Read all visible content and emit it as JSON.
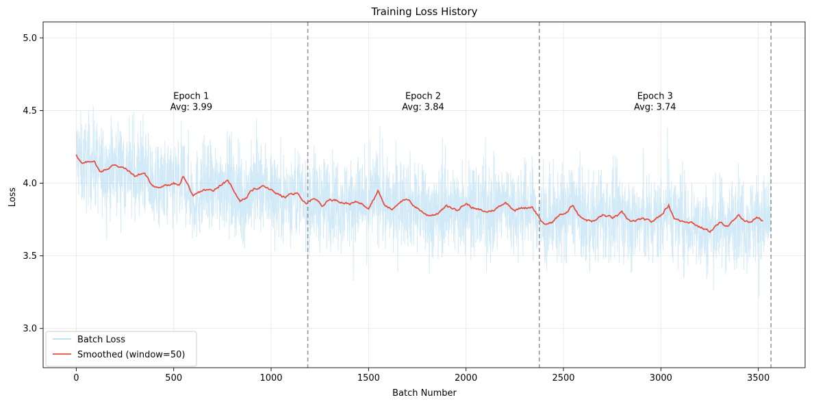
{
  "chart_data": {
    "type": "line",
    "title": "Training Loss History",
    "xlabel": "Batch Number",
    "ylabel": "Loss",
    "xlim": [
      -170,
      3740
    ],
    "ylim": [
      2.73,
      5.11
    ],
    "xticks": [
      0,
      500,
      1000,
      1500,
      2000,
      2500,
      3000,
      3500
    ],
    "yticks": [
      3.0,
      3.5,
      4.0,
      4.5,
      5.0
    ],
    "xtick_labels": [
      "0",
      "500",
      "1000",
      "1500",
      "2000",
      "2500",
      "3000",
      "3500"
    ],
    "ytick_labels": [
      "3.0",
      "3.5",
      "4.0",
      "4.5",
      "5.0"
    ],
    "grid": true,
    "legend_position": "lower-left",
    "series": [
      {
        "name": "Batch Loss",
        "color": "#add8f0",
        "style": "noisy",
        "noise_amplitude": 0.28,
        "x_range": [
          0,
          3565
        ]
      },
      {
        "name": "Smoothed (window=50)",
        "color": "#e74c3c",
        "points": [
          [
            0,
            4.2
          ],
          [
            30,
            4.13
          ],
          [
            60,
            4.14
          ],
          [
            90,
            4.16
          ],
          [
            120,
            4.08
          ],
          [
            160,
            4.1
          ],
          [
            200,
            4.13
          ],
          [
            250,
            4.1
          ],
          [
            300,
            4.05
          ],
          [
            350,
            4.07
          ],
          [
            380,
            4.0
          ],
          [
            420,
            3.97
          ],
          [
            460,
            3.98
          ],
          [
            500,
            4.0
          ],
          [
            530,
            3.98
          ],
          [
            550,
            4.05
          ],
          [
            580,
            3.97
          ],
          [
            600,
            3.9
          ],
          [
            650,
            3.95
          ],
          [
            700,
            3.95
          ],
          [
            750,
            4.0
          ],
          [
            780,
            4.01
          ],
          [
            810,
            3.95
          ],
          [
            840,
            3.88
          ],
          [
            870,
            3.9
          ],
          [
            900,
            3.95
          ],
          [
            950,
            3.98
          ],
          [
            1000,
            3.95
          ],
          [
            1030,
            3.93
          ],
          [
            1070,
            3.9
          ],
          [
            1100,
            3.92
          ],
          [
            1140,
            3.93
          ],
          [
            1180,
            3.85
          ],
          [
            1220,
            3.9
          ],
          [
            1260,
            3.85
          ],
          [
            1300,
            3.89
          ],
          [
            1350,
            3.88
          ],
          [
            1400,
            3.86
          ],
          [
            1450,
            3.87
          ],
          [
            1480,
            3.85
          ],
          [
            1500,
            3.84
          ],
          [
            1550,
            3.95
          ],
          [
            1580,
            3.85
          ],
          [
            1620,
            3.82
          ],
          [
            1660,
            3.88
          ],
          [
            1700,
            3.88
          ],
          [
            1750,
            3.83
          ],
          [
            1800,
            3.78
          ],
          [
            1850,
            3.79
          ],
          [
            1900,
            3.84
          ],
          [
            1950,
            3.82
          ],
          [
            2000,
            3.86
          ],
          [
            2050,
            3.82
          ],
          [
            2100,
            3.8
          ],
          [
            2150,
            3.82
          ],
          [
            2200,
            3.87
          ],
          [
            2250,
            3.82
          ],
          [
            2300,
            3.83
          ],
          [
            2340,
            3.84
          ],
          [
            2370,
            3.78
          ],
          [
            2400,
            3.71
          ],
          [
            2440,
            3.73
          ],
          [
            2480,
            3.78
          ],
          [
            2520,
            3.8
          ],
          [
            2550,
            3.85
          ],
          [
            2580,
            3.78
          ],
          [
            2620,
            3.75
          ],
          [
            2660,
            3.74
          ],
          [
            2700,
            3.78
          ],
          [
            2750,
            3.76
          ],
          [
            2800,
            3.79
          ],
          [
            2850,
            3.73
          ],
          [
            2900,
            3.75
          ],
          [
            2950,
            3.73
          ],
          [
            3000,
            3.78
          ],
          [
            3040,
            3.85
          ],
          [
            3070,
            3.76
          ],
          [
            3100,
            3.74
          ],
          [
            3150,
            3.74
          ],
          [
            3200,
            3.7
          ],
          [
            3250,
            3.67
          ],
          [
            3300,
            3.72
          ],
          [
            3350,
            3.71
          ],
          [
            3400,
            3.77
          ],
          [
            3450,
            3.73
          ],
          [
            3490,
            3.76
          ],
          [
            3525,
            3.74
          ]
        ]
      }
    ],
    "epoch_boundaries": [
      1188,
      2376,
      3565
    ],
    "annotations": [
      {
        "x": 590,
        "y": 4.5,
        "line1": "Epoch 1",
        "line2": "Avg: 3.99"
      },
      {
        "x": 1780,
        "y": 4.5,
        "line1": "Epoch 2",
        "line2": "Avg: 3.84"
      },
      {
        "x": 2970,
        "y": 4.5,
        "line1": "Epoch 3",
        "line2": "Avg: 3.74"
      }
    ]
  }
}
